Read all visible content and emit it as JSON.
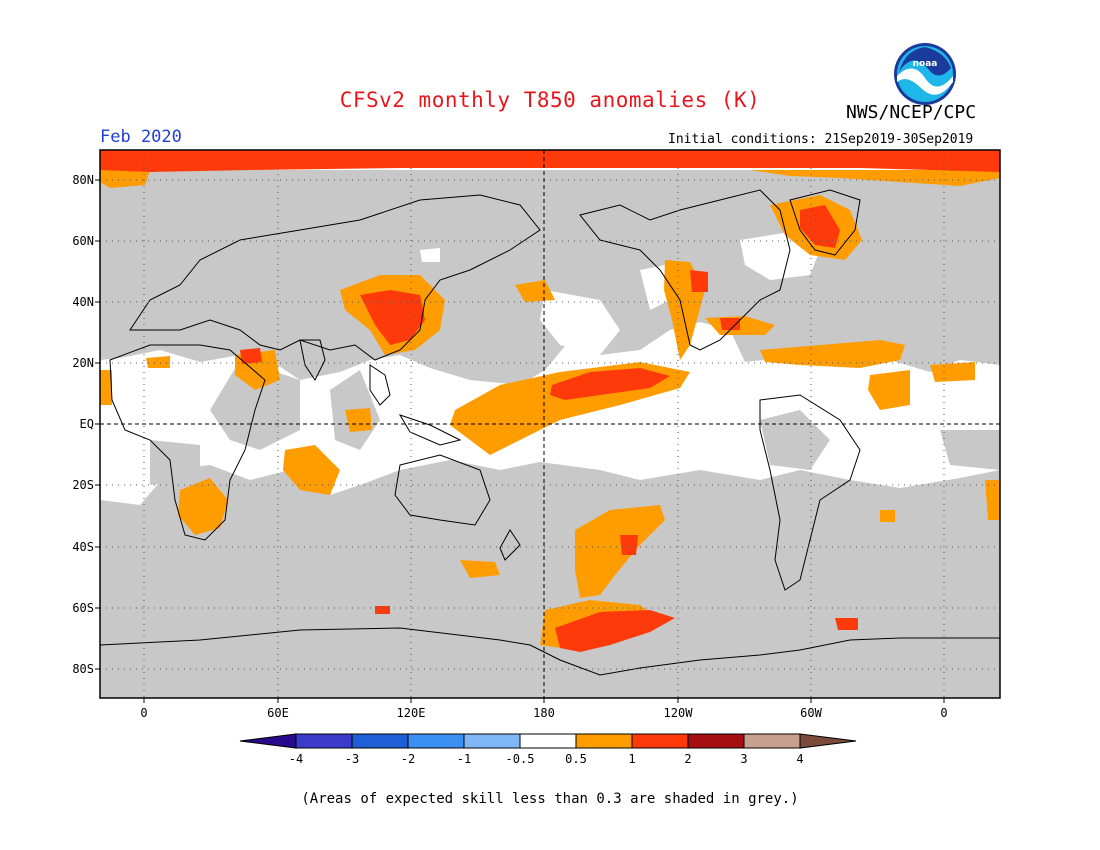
{
  "title": "CFSv2 monthly T850 anomalies (K)",
  "agency": "NWS/NCEP/CPC",
  "valid_month": "Feb 2020",
  "initial_conditions": "Initial conditions: 21Sep2019-30Sep2019",
  "logo": {
    "text": "noaa",
    "icon": "noaa-logo-icon"
  },
  "footnote": "(Areas of expected skill less than 0.3 are shaded in grey.)",
  "lat_labels": [
    "80N",
    "60N",
    "40N",
    "20N",
    "EQ",
    "20S",
    "40S",
    "60S",
    "80S"
  ],
  "lon_labels": [
    "0",
    "60E",
    "120E",
    "180",
    "120W",
    "60W",
    "0"
  ],
  "colorbar": {
    "labels": [
      "-4",
      "-3",
      "-2",
      "-1",
      "-0.5",
      "0.5",
      "1",
      "2",
      "3",
      "4"
    ],
    "colors": [
      "#2a0a8c",
      "#3c3ccc",
      "#1e5ed6",
      "#3a8ff0",
      "#7fb6f5",
      "#ffffff",
      "#ff9c00",
      "#ff3a0a",
      "#a60f0f",
      "#c8a090",
      "#7a4a3a"
    ]
  },
  "colors": {
    "low_skill": "#c8c8c8",
    "warm_05_1": "#ff9c00",
    "warm_1_2": "#ff3a0a",
    "title": "#e8161c",
    "month": "#1f3fd8"
  }
}
